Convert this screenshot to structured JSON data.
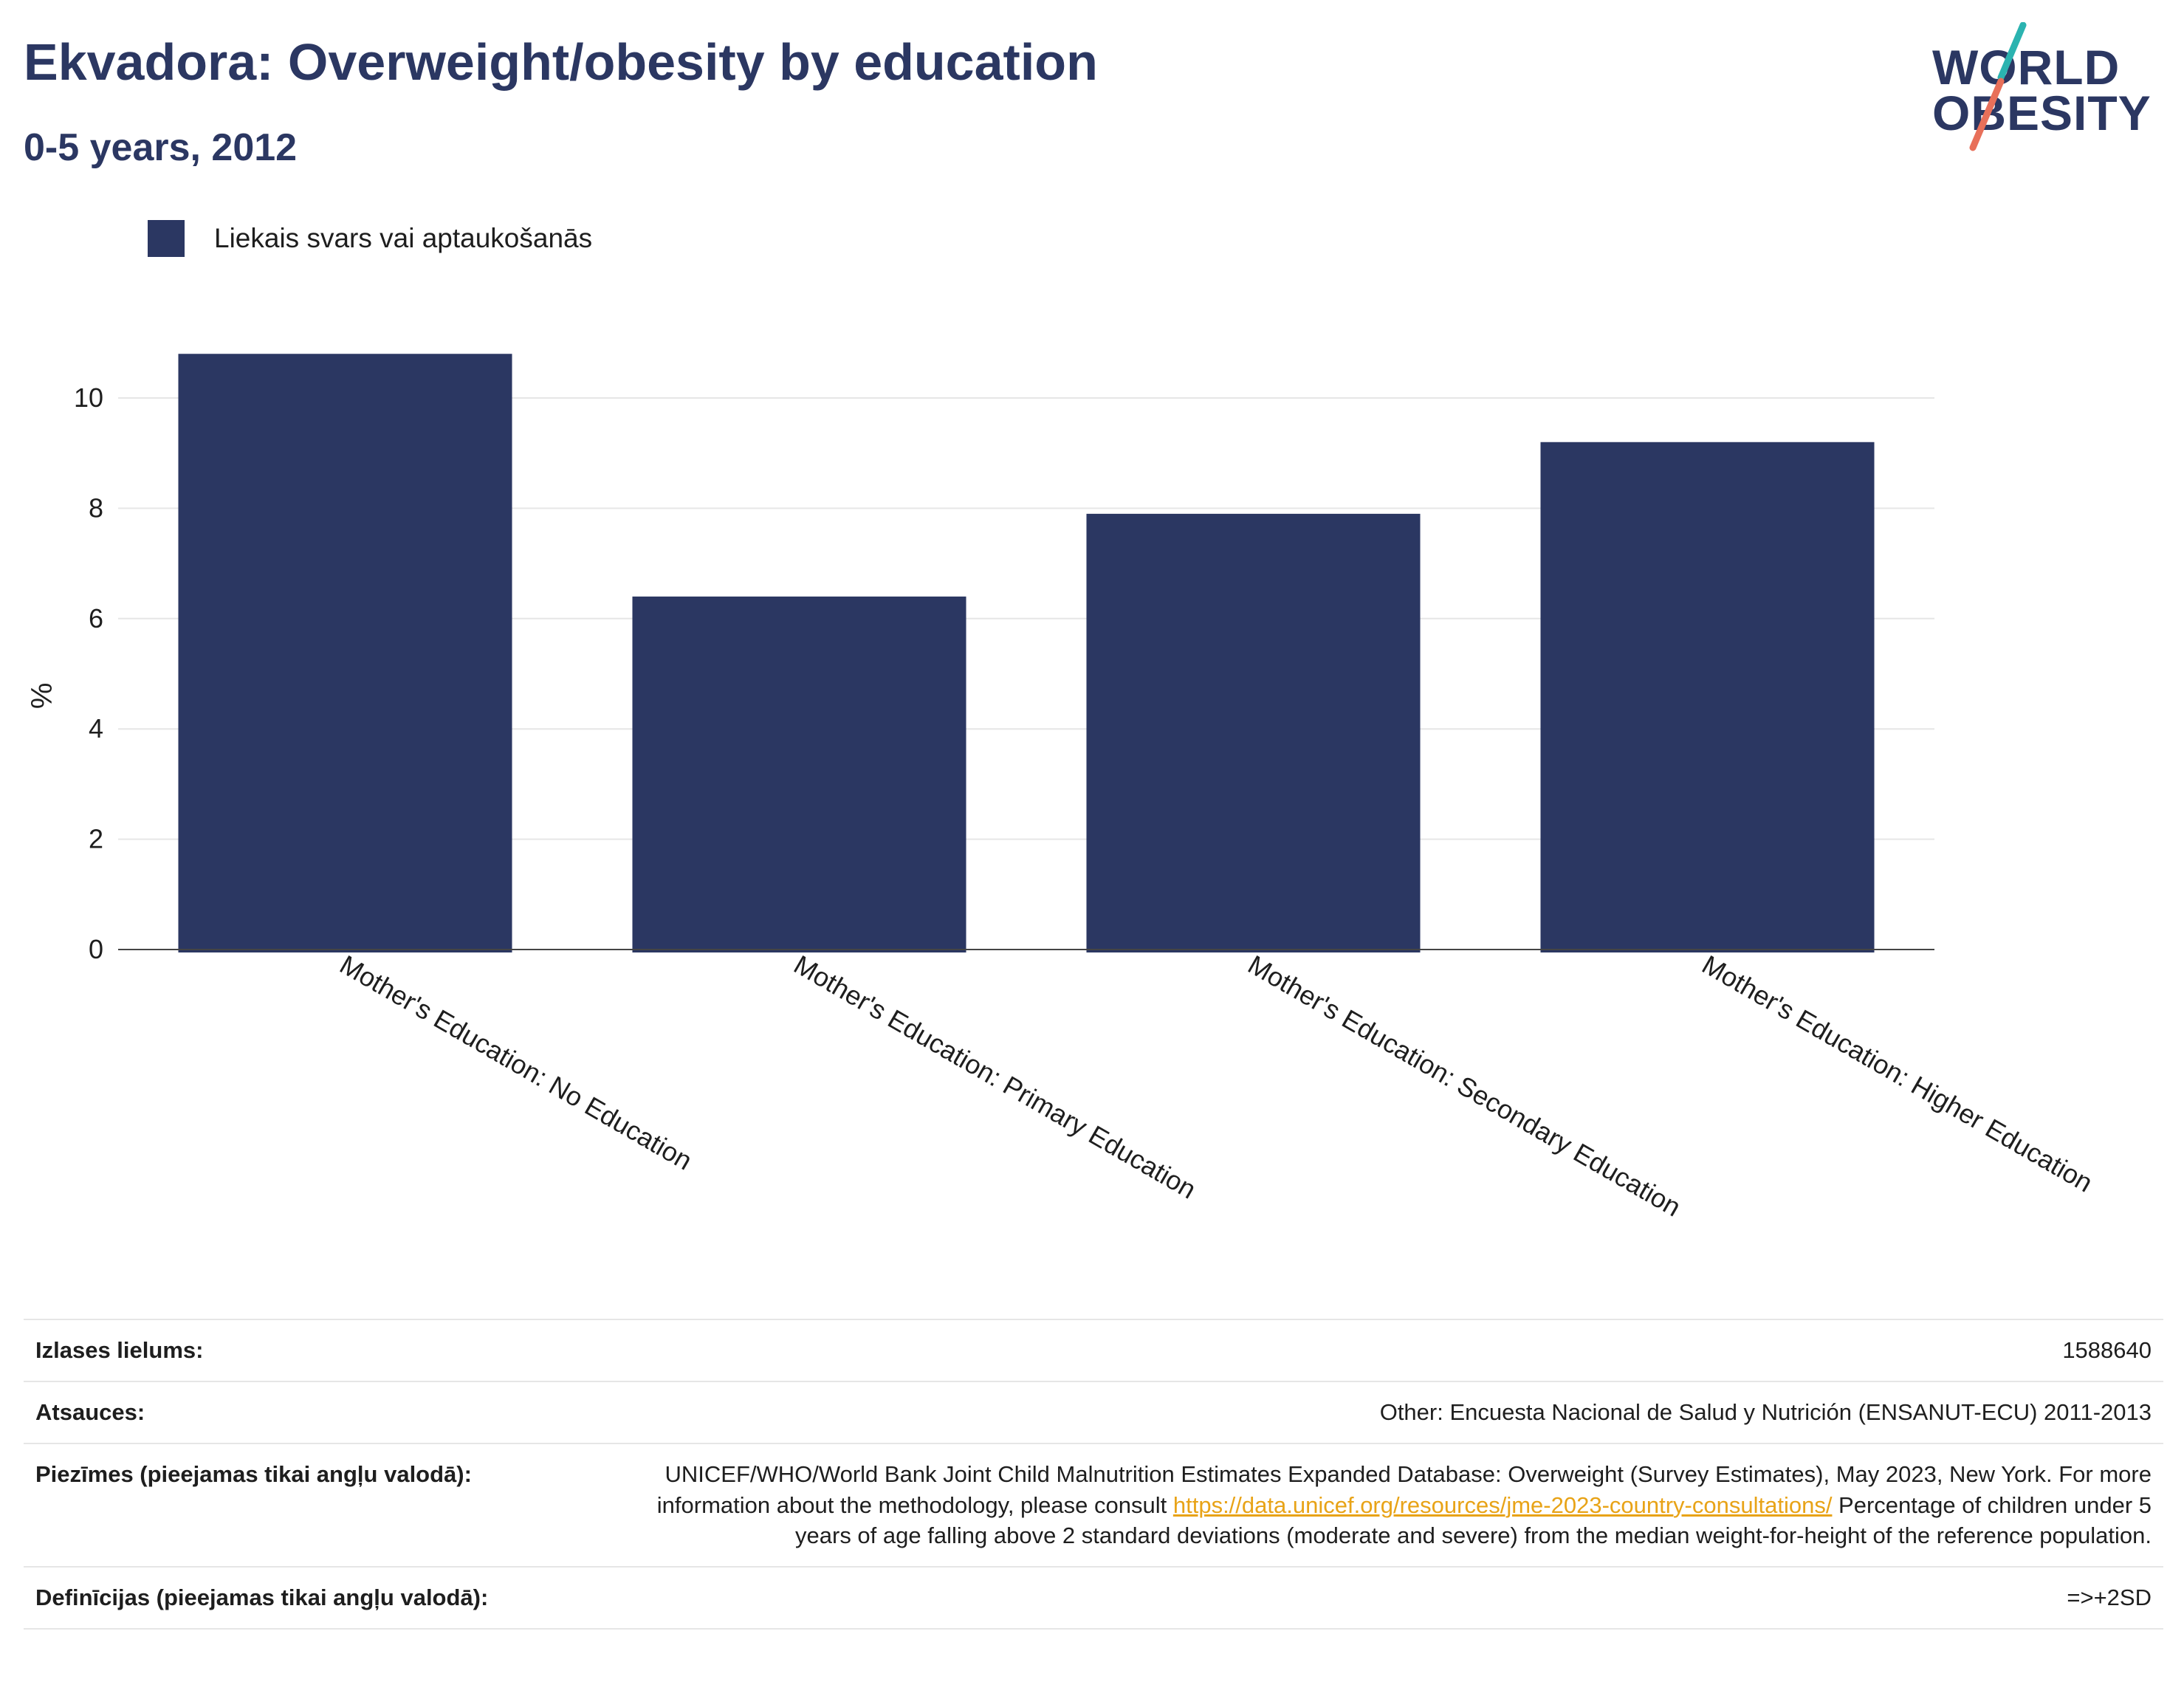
{
  "header": {
    "title": "Ekvadora: Overweight/obesity by education",
    "subtitle": "0-5 years, 2012"
  },
  "logo": {
    "line1": "WORLD",
    "line2": "OBESITY"
  },
  "legend": {
    "label": "Liekais svars vai aptaukošanās"
  },
  "colors": {
    "bar": "#2b3762",
    "accent_teal": "#2bb3b0",
    "accent_coral": "#e8705a",
    "link": "#e8a317"
  },
  "chart_data": {
    "type": "bar",
    "categories": [
      "Mother's Education: No Education",
      "Mother's Education: Primary Education",
      "Mother's Education: Secondary Education",
      "Mother's Education: Higher Education"
    ],
    "series": [
      {
        "name": "Liekais svars vai aptaukošanās",
        "values": [
          10.8,
          6.4,
          7.9,
          9.2
        ]
      }
    ],
    "title": "Ekvadora: Overweight/obesity by education",
    "subtitle": "0-5 years, 2012",
    "xlabel": "",
    "ylabel": "%",
    "ylim": [
      0,
      11.5
    ],
    "yticks": [
      0,
      2,
      4,
      6,
      8,
      10
    ],
    "grid": true,
    "legend_position": "top-left"
  },
  "info": {
    "sample_size_label": "Izlases lielums:",
    "sample_size_value": "1588640",
    "sources_label": "Atsauces:",
    "sources_value": "Other: Encuesta Nacional de Salud y Nutrición (ENSANUT-ECU) 2011-2013",
    "notes_label": "Piezīmes (pieejamas tikai angļu valodā):",
    "notes_text_1": "UNICEF/WHO/World Bank Joint Child Malnutrition Estimates Expanded Database: Overweight (Survey Estimates), May 2023, New York. For more information about the methodology, please consult ",
    "notes_link": "https://data.unicef.org/resources/jme-2023-country-consultations/",
    "notes_text_2": " Percentage of children under 5 years of age falling above 2 standard deviations (moderate and severe) from the median weight-for-height of the reference population.",
    "definitions_label": "Definīcijas (pieejamas tikai angļu valodā):",
    "definitions_value": "=>+2SD"
  }
}
